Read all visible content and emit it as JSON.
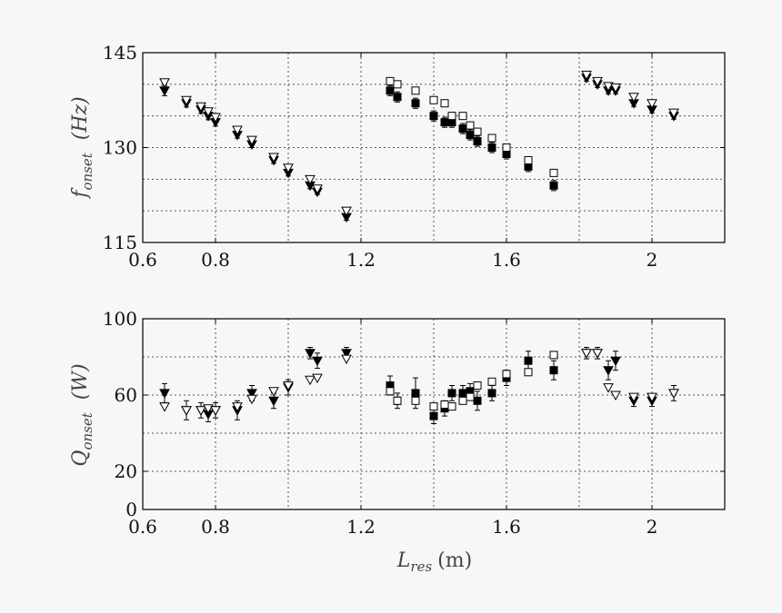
{
  "chart_data": [
    {
      "type": "scatter",
      "ylabel": {
        "main": "f",
        "sub": "onset",
        "unit": "(Hz)"
      },
      "xlim": [
        0.6,
        2.2
      ],
      "ylim": [
        115,
        145
      ],
      "grid": true,
      "xticks": [
        0.6,
        0.8,
        1.2,
        1.6,
        2
      ],
      "xtick_labels": [
        "0.6",
        "0.8",
        "1.2",
        "1.6",
        "2"
      ],
      "xgrid": [
        0.8,
        1.0,
        1.2,
        1.4,
        1.6,
        1.8,
        2.0
      ],
      "yticks": [
        115,
        130,
        145
      ],
      "ygrid": [
        120,
        125,
        130,
        135,
        140
      ],
      "series": [
        {
          "marker": "triangle-down-filled",
          "points": [
            {
              "x": 0.66,
              "y": 139.0,
              "err": 0.8
            },
            {
              "x": 0.72,
              "y": 137.0,
              "err": 0.6
            },
            {
              "x": 0.76,
              "y": 136.0,
              "err": 0.6
            },
            {
              "x": 0.78,
              "y": 135.0,
              "err": 0.6
            },
            {
              "x": 0.8,
              "y": 134.0,
              "err": 0.6
            },
            {
              "x": 0.86,
              "y": 132.0,
              "err": 0.5
            },
            {
              "x": 0.9,
              "y": 130.5,
              "err": 0.5
            },
            {
              "x": 0.96,
              "y": 128.0,
              "err": 0.5
            },
            {
              "x": 1.0,
              "y": 126.0,
              "err": 0.5
            },
            {
              "x": 1.06,
              "y": 124.0,
              "err": 0.5
            },
            {
              "x": 1.08,
              "y": 123.0,
              "err": 0.4
            },
            {
              "x": 1.16,
              "y": 119.0,
              "err": 0.5
            },
            {
              "x": 1.82,
              "y": 141.0,
              "err": 0.5
            },
            {
              "x": 1.85,
              "y": 140.0,
              "err": 0.5
            },
            {
              "x": 1.88,
              "y": 139.0,
              "err": 0.5
            },
            {
              "x": 1.9,
              "y": 139.0,
              "err": 0.5
            },
            {
              "x": 1.95,
              "y": 137.0,
              "err": 0.5
            },
            {
              "x": 2.0,
              "y": 136.0,
              "err": 0.5
            },
            {
              "x": 2.06,
              "y": 135.0,
              "err": 0.5
            }
          ]
        },
        {
          "marker": "triangle-down-open",
          "points": [
            {
              "x": 0.66,
              "y": 140.3
            },
            {
              "x": 0.72,
              "y": 137.5
            },
            {
              "x": 0.76,
              "y": 136.5
            },
            {
              "x": 0.78,
              "y": 135.7
            },
            {
              "x": 0.8,
              "y": 134.8
            },
            {
              "x": 0.86,
              "y": 132.8
            },
            {
              "x": 0.9,
              "y": 131.2
            },
            {
              "x": 0.96,
              "y": 128.5
            },
            {
              "x": 1.0,
              "y": 126.8
            },
            {
              "x": 1.06,
              "y": 125.0
            },
            {
              "x": 1.08,
              "y": 123.5
            },
            {
              "x": 1.16,
              "y": 120.0
            },
            {
              "x": 1.82,
              "y": 141.5
            },
            {
              "x": 1.85,
              "y": 140.5
            },
            {
              "x": 1.88,
              "y": 139.7
            },
            {
              "x": 1.9,
              "y": 139.5
            },
            {
              "x": 1.95,
              "y": 138.0
            },
            {
              "x": 2.0,
              "y": 137.0
            },
            {
              "x": 2.06,
              "y": 135.5
            }
          ]
        },
        {
          "marker": "square-filled",
          "points": [
            {
              "x": 1.28,
              "y": 139.0,
              "err": 0.8
            },
            {
              "x": 1.3,
              "y": 138.0,
              "err": 0.8
            },
            {
              "x": 1.35,
              "y": 137.0,
              "err": 0.8
            },
            {
              "x": 1.4,
              "y": 135.0,
              "err": 0.8
            },
            {
              "x": 1.43,
              "y": 134.0,
              "err": 0.8
            },
            {
              "x": 1.45,
              "y": 134.0,
              "err": 0.8
            },
            {
              "x": 1.48,
              "y": 133.0,
              "err": 0.8
            },
            {
              "x": 1.5,
              "y": 132.0,
              "err": 0.8
            },
            {
              "x": 1.52,
              "y": 131.0,
              "err": 0.8
            },
            {
              "x": 1.56,
              "y": 130.0,
              "err": 0.8
            },
            {
              "x": 1.6,
              "y": 129.0,
              "err": 0.8
            },
            {
              "x": 1.66,
              "y": 127.0,
              "err": 0.8
            },
            {
              "x": 1.73,
              "y": 124.0,
              "err": 0.8
            }
          ]
        },
        {
          "marker": "square-open",
          "points": [
            {
              "x": 1.28,
              "y": 140.5
            },
            {
              "x": 1.3,
              "y": 140.0
            },
            {
              "x": 1.35,
              "y": 139.0
            },
            {
              "x": 1.4,
              "y": 137.5
            },
            {
              "x": 1.43,
              "y": 137.0
            },
            {
              "x": 1.45,
              "y": 135.0
            },
            {
              "x": 1.48,
              "y": 135.0
            },
            {
              "x": 1.5,
              "y": 133.5
            },
            {
              "x": 1.52,
              "y": 132.5
            },
            {
              "x": 1.56,
              "y": 131.5
            },
            {
              "x": 1.6,
              "y": 130.0
            },
            {
              "x": 1.66,
              "y": 128.0
            },
            {
              "x": 1.73,
              "y": 126.0
            }
          ]
        }
      ]
    },
    {
      "type": "scatter",
      "xlabel": {
        "main": "L",
        "sub": "res",
        "unit": "(m)"
      },
      "ylabel": {
        "main": "Q",
        "sub": "onset",
        "unit": "(W)"
      },
      "xlim": [
        0.6,
        2.2
      ],
      "ylim": [
        0,
        100
      ],
      "grid": true,
      "xticks": [
        0.6,
        0.8,
        1.2,
        1.6,
        2
      ],
      "xtick_labels": [
        "0.6",
        "0.8",
        "1.2",
        "1.6",
        "2"
      ],
      "xgrid": [
        0.8,
        1.0,
        1.2,
        1.4,
        1.6,
        1.8,
        2.0
      ],
      "yticks": [
        0,
        20,
        60,
        100
      ],
      "ygrid": [
        20,
        40,
        60,
        80
      ],
      "series": [
        {
          "marker": "triangle-down-filled",
          "points": [
            {
              "x": 0.66,
              "y": 61,
              "err": 5
            },
            {
              "x": 0.72,
              "y": 52,
              "err": 5
            },
            {
              "x": 0.76,
              "y": 52,
              "err": 4
            },
            {
              "x": 0.78,
              "y": 50,
              "err": 4
            },
            {
              "x": 0.8,
              "y": 52,
              "err": 4
            },
            {
              "x": 0.86,
              "y": 52,
              "err": 5
            },
            {
              "x": 0.9,
              "y": 61,
              "err": 4
            },
            {
              "x": 0.96,
              "y": 57,
              "err": 4
            },
            {
              "x": 1.0,
              "y": 64,
              "err": 4
            },
            {
              "x": 1.06,
              "y": 82,
              "err": 3
            },
            {
              "x": 1.08,
              "y": 78,
              "err": 4
            },
            {
              "x": 1.16,
              "y": 82,
              "err": 3
            },
            {
              "x": 1.82,
              "y": 82,
              "err": 3
            },
            {
              "x": 1.85,
              "y": 82,
              "err": 3
            },
            {
              "x": 1.88,
              "y": 73,
              "err": 5
            },
            {
              "x": 1.9,
              "y": 78,
              "err": 5
            },
            {
              "x": 1.95,
              "y": 57,
              "err": 3
            },
            {
              "x": 2.0,
              "y": 57,
              "err": 3
            },
            {
              "x": 2.06,
              "y": 61,
              "err": 4
            }
          ]
        },
        {
          "marker": "triangle-down-open",
          "points": [
            {
              "x": 0.66,
              "y": 54
            },
            {
              "x": 0.72,
              "y": 52
            },
            {
              "x": 0.76,
              "y": 52
            },
            {
              "x": 0.78,
              "y": 53
            },
            {
              "x": 0.8,
              "y": 52
            },
            {
              "x": 0.86,
              "y": 54
            },
            {
              "x": 0.9,
              "y": 58
            },
            {
              "x": 0.96,
              "y": 62
            },
            {
              "x": 1.0,
              "y": 65
            },
            {
              "x": 1.06,
              "y": 68
            },
            {
              "x": 1.08,
              "y": 69
            },
            {
              "x": 1.16,
              "y": 79
            },
            {
              "x": 1.82,
              "y": 82
            },
            {
              "x": 1.85,
              "y": 82
            },
            {
              "x": 1.88,
              "y": 64
            },
            {
              "x": 1.9,
              "y": 60
            },
            {
              "x": 1.95,
              "y": 59
            },
            {
              "x": 2.0,
              "y": 59
            },
            {
              "x": 2.06,
              "y": 61
            }
          ]
        },
        {
          "marker": "square-filled",
          "points": [
            {
              "x": 1.28,
              "y": 65,
              "err": 5
            },
            {
              "x": 1.3,
              "y": 57,
              "err": 4
            },
            {
              "x": 1.35,
              "y": 61,
              "err": 8
            },
            {
              "x": 1.4,
              "y": 49,
              "err": 4
            },
            {
              "x": 1.43,
              "y": 53,
              "err": 4
            },
            {
              "x": 1.45,
              "y": 61,
              "err": 4
            },
            {
              "x": 1.48,
              "y": 61,
              "err": 4
            },
            {
              "x": 1.5,
              "y": 62,
              "err": 4
            },
            {
              "x": 1.52,
              "y": 57,
              "err": 5
            },
            {
              "x": 1.56,
              "y": 61,
              "err": 4
            },
            {
              "x": 1.6,
              "y": 69,
              "err": 4
            },
            {
              "x": 1.66,
              "y": 78,
              "err": 5
            },
            {
              "x": 1.73,
              "y": 73,
              "err": 5
            }
          ]
        },
        {
          "marker": "square-open",
          "points": [
            {
              "x": 1.28,
              "y": 62
            },
            {
              "x": 1.3,
              "y": 57
            },
            {
              "x": 1.35,
              "y": 57
            },
            {
              "x": 1.4,
              "y": 54
            },
            {
              "x": 1.43,
              "y": 55
            },
            {
              "x": 1.45,
              "y": 54
            },
            {
              "x": 1.48,
              "y": 57
            },
            {
              "x": 1.5,
              "y": 59
            },
            {
              "x": 1.52,
              "y": 65
            },
            {
              "x": 1.56,
              "y": 67
            },
            {
              "x": 1.6,
              "y": 71
            },
            {
              "x": 1.66,
              "y": 72
            },
            {
              "x": 1.73,
              "y": 81
            }
          ]
        }
      ]
    }
  ]
}
